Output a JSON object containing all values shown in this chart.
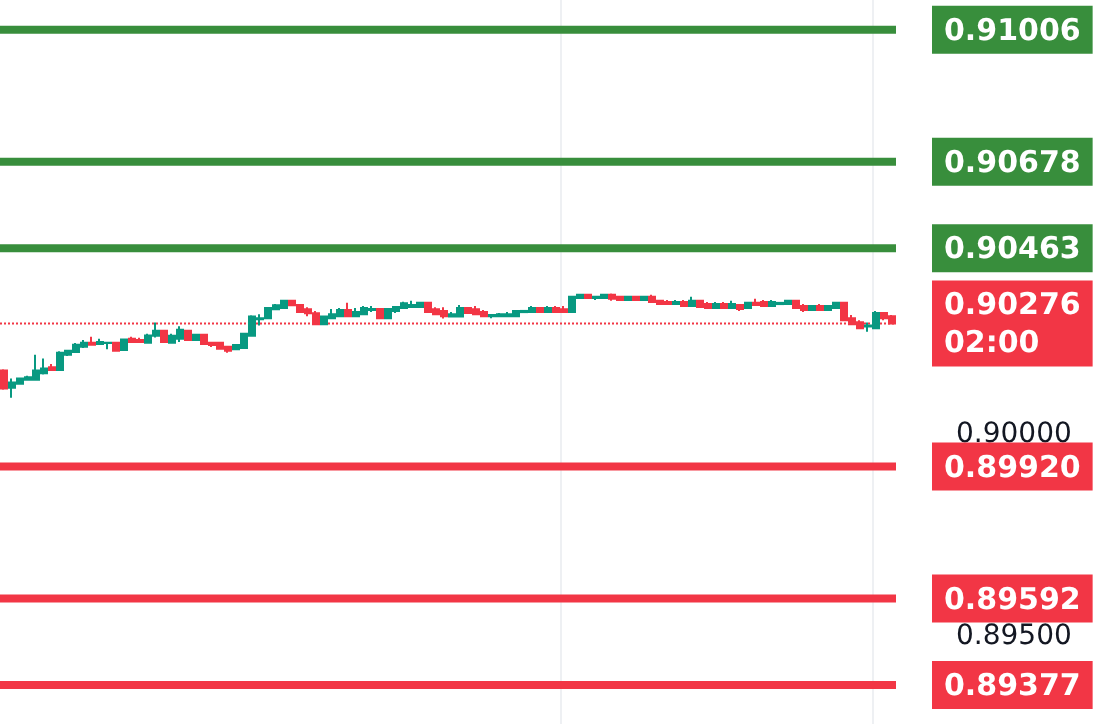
{
  "chart_data": {
    "type": "candlestick",
    "categories": [
      null,
      null,
      null,
      null,
      null,
      null,
      null,
      null,
      null,
      null,
      null,
      null,
      null,
      null,
      null,
      null,
      null,
      null,
      null,
      null,
      null,
      null,
      null,
      null,
      null,
      null,
      null,
      null,
      null,
      null,
      null,
      null,
      null,
      null,
      null,
      null,
      null,
      null,
      null,
      null,
      null,
      null,
      null,
      null,
      null,
      null,
      null,
      null,
      null,
      null,
      null,
      null,
      null,
      null,
      null,
      null,
      null,
      null,
      null,
      null,
      null,
      null,
      null,
      null,
      null,
      null,
      null,
      null,
      null,
      null,
      null,
      null,
      null,
      null,
      null,
      null,
      null,
      null,
      null,
      null,
      null,
      null,
      null,
      null,
      null,
      null,
      null,
      null,
      null,
      null,
      null,
      null,
      null,
      null,
      null,
      null,
      null,
      null,
      null,
      null,
      null,
      null,
      null,
      null,
      null,
      null,
      null,
      null,
      null,
      null,
      null,
      null
    ],
    "ohlc": [
      [
        0.90159,
        0.90162,
        0.90111,
        0.90114
      ],
      [
        0.90116,
        0.90139,
        0.90091,
        0.90129
      ],
      [
        0.90126,
        0.90139,
        0.90126,
        0.90139
      ],
      [
        0.90136,
        0.90146,
        0.90136,
        0.90142
      ],
      [
        0.90136,
        0.90198,
        0.90136,
        0.90159
      ],
      [
        0.90152,
        0.90189,
        0.90149,
        0.90164
      ],
      [
        0.90167,
        0.90175,
        0.9016,
        0.9016
      ],
      [
        0.9016,
        0.90207,
        0.9016,
        0.90203
      ],
      [
        0.90198,
        0.90208,
        0.90195,
        0.90208
      ],
      [
        0.90205,
        0.90227,
        0.90205,
        0.90223
      ],
      [
        0.90218,
        0.90235,
        0.90215,
        0.90228
      ],
      [
        0.90228,
        0.90243,
        0.90223,
        0.90223
      ],
      [
        0.90225,
        0.90238,
        0.90225,
        0.9023
      ],
      [
        0.90227,
        0.9023,
        0.90212,
        0.90228
      ],
      [
        0.90228,
        0.90228,
        0.90208,
        0.90208
      ],
      [
        0.9021,
        0.90238,
        0.9021,
        0.90236
      ],
      [
        0.90238,
        0.90243,
        0.9023,
        0.9023
      ],
      [
        0.90235,
        0.9024,
        0.9023,
        0.9023
      ],
      [
        0.90228,
        0.9025,
        0.90228,
        0.90246
      ],
      [
        0.90245,
        0.90278,
        0.90241,
        0.90258
      ],
      [
        0.90258,
        0.90258,
        0.9023,
        0.9023
      ],
      [
        0.90228,
        0.9025,
        0.90228,
        0.90245
      ],
      [
        0.90238,
        0.90269,
        0.9023,
        0.9026
      ],
      [
        0.90258,
        0.90258,
        0.90235,
        0.90235
      ],
      [
        0.90235,
        0.90248,
        0.90235,
        0.90248
      ],
      [
        0.90248,
        0.90248,
        0.90225,
        0.90225
      ],
      [
        0.90228,
        0.90228,
        0.90217,
        0.90222
      ],
      [
        0.90228,
        0.90228,
        0.90213,
        0.90213
      ],
      [
        0.90218,
        0.90218,
        0.90203,
        0.90208
      ],
      [
        0.90212,
        0.90225,
        0.90212,
        0.90222
      ],
      [
        0.90215,
        0.90253,
        0.90215,
        0.9025
      ],
      [
        0.90245,
        0.90296,
        0.90245,
        0.90293
      ],
      [
        0.90286,
        0.90299,
        0.90271,
        0.90289
      ],
      [
        0.90289,
        0.90317,
        0.90289,
        0.90314
      ],
      [
        0.90311,
        0.90324,
        0.90311,
        0.90321
      ],
      [
        0.90314,
        0.90332,
        0.90314,
        0.90332
      ],
      [
        0.90332,
        0.90332,
        0.90321,
        0.90321
      ],
      [
        0.90322,
        0.90322,
        0.90304,
        0.90304
      ],
      [
        0.90311,
        0.90316,
        0.90294,
        0.90301
      ],
      [
        0.90301,
        0.90307,
        0.90274,
        0.90274
      ],
      [
        0.90274,
        0.90293,
        0.90274,
        0.90293
      ],
      [
        0.90289,
        0.90312,
        0.90289,
        0.90299
      ],
      [
        0.90294,
        0.90314,
        0.90294,
        0.90309
      ],
      [
        0.90309,
        0.90327,
        0.90294,
        0.90294
      ],
      [
        0.90294,
        0.90314,
        0.90294,
        0.90304
      ],
      [
        0.90299,
        0.90319,
        0.90299,
        0.90314
      ],
      [
        0.90309,
        0.90319,
        0.90304,
        0.90312
      ],
      [
        0.90312,
        0.90312,
        0.90289,
        0.90289
      ],
      [
        0.90289,
        0.90312,
        0.90289,
        0.90312
      ],
      [
        0.90307,
        0.90317,
        0.90302,
        0.90317
      ],
      [
        0.90314,
        0.9033,
        0.90314,
        0.90326
      ],
      [
        0.90317,
        0.90332,
        0.90317,
        0.90322
      ],
      [
        0.90317,
        0.90327,
        0.90317,
        0.90327
      ],
      [
        0.90327,
        0.90327,
        0.90304,
        0.90304
      ],
      [
        0.90311,
        0.90316,
        0.90299,
        0.90299
      ],
      [
        0.90307,
        0.90316,
        0.90288,
        0.90294
      ],
      [
        0.90293,
        0.90304,
        0.90293,
        0.90299
      ],
      [
        0.90293,
        0.90322,
        0.90293,
        0.90314
      ],
      [
        0.90314,
        0.90314,
        0.90302,
        0.90302
      ],
      [
        0.90311,
        0.90319,
        0.90299,
        0.90299
      ],
      [
        0.90304,
        0.90309,
        0.90294,
        0.90294
      ],
      [
        0.90294,
        0.90297,
        0.90289,
        0.90297
      ],
      [
        0.90294,
        0.90302,
        0.90294,
        0.90299
      ],
      [
        0.90294,
        0.90304,
        0.90294,
        0.90299
      ],
      [
        0.90294,
        0.90307,
        0.90294,
        0.90307
      ],
      [
        0.90304,
        0.90307,
        0.90304,
        0.90307
      ],
      [
        0.90304,
        0.90319,
        0.90304,
        0.90314
      ],
      [
        0.90314,
        0.90314,
        0.90304,
        0.90304
      ],
      [
        0.90304,
        0.90319,
        0.90304,
        0.90314
      ],
      [
        0.90314,
        0.90319,
        0.90304,
        0.90304
      ],
      [
        0.90311,
        0.90319,
        0.90304,
        0.90304
      ],
      [
        0.90304,
        0.90342,
        0.90304,
        0.90342
      ],
      [
        0.90339,
        0.90347,
        0.90339,
        0.90347
      ],
      [
        0.90347,
        0.90347,
        0.90339,
        0.90339
      ],
      [
        0.90339,
        0.90342,
        0.90334,
        0.90342
      ],
      [
        0.90339,
        0.90347,
        0.90339,
        0.90347
      ],
      [
        0.90347,
        0.9035,
        0.90332,
        0.90337
      ],
      [
        0.90342,
        0.90342,
        0.90334,
        0.90334
      ],
      [
        0.90334,
        0.90342,
        0.90334,
        0.90342
      ],
      [
        0.90342,
        0.90342,
        0.90334,
        0.90334
      ],
      [
        0.90334,
        0.90342,
        0.90334,
        0.90342
      ],
      [
        0.90342,
        0.90347,
        0.90329,
        0.90329
      ],
      [
        0.90332,
        0.90332,
        0.90324,
        0.90324
      ],
      [
        0.90329,
        0.90334,
        0.90324,
        0.90324
      ],
      [
        0.90324,
        0.90334,
        0.90324,
        0.90329
      ],
      [
        0.90329,
        0.90334,
        0.90319,
        0.90319
      ],
      [
        0.90319,
        0.90342,
        0.90319,
        0.90332
      ],
      [
        0.90332,
        0.90332,
        0.90317,
        0.90317
      ],
      [
        0.90324,
        0.90329,
        0.90314,
        0.90314
      ],
      [
        0.90314,
        0.90329,
        0.90314,
        0.90324
      ],
      [
        0.90324,
        0.90329,
        0.90314,
        0.90314
      ],
      [
        0.90314,
        0.90332,
        0.90314,
        0.90324
      ],
      [
        0.90322,
        0.90322,
        0.90307,
        0.90312
      ],
      [
        0.90314,
        0.90327,
        0.90314,
        0.90327
      ],
      [
        0.90327,
        0.90337,
        0.90322,
        0.90322
      ],
      [
        0.90329,
        0.90334,
        0.90319,
        0.90319
      ],
      [
        0.90319,
        0.90334,
        0.90319,
        0.90329
      ],
      [
        0.90324,
        0.90327,
        0.90324,
        0.90327
      ],
      [
        0.90324,
        0.90332,
        0.90324,
        0.90332
      ],
      [
        0.90332,
        0.90332,
        0.90314,
        0.90314
      ],
      [
        0.90319,
        0.90324,
        0.90304,
        0.90309
      ],
      [
        0.90309,
        0.90319,
        0.90309,
        0.90319
      ],
      [
        0.90319,
        0.90324,
        0.90309,
        0.90309
      ],
      [
        0.90309,
        0.90319,
        0.90309,
        0.90319
      ],
      [
        0.90314,
        0.90327,
        0.90314,
        0.90327
      ],
      [
        0.90327,
        0.90327,
        0.90284,
        0.90284
      ],
      [
        0.90289,
        0.90297,
        0.90274,
        0.90274
      ],
      [
        0.90279,
        0.90284,
        0.90264,
        0.90264
      ],
      [
        0.90268,
        0.90278,
        0.90255,
        0.90271
      ],
      [
        0.90264,
        0.90307,
        0.90264,
        0.90302
      ],
      [
        0.90302,
        0.90302,
        0.90284,
        0.90289
      ],
      [
        0.90294,
        0.90297,
        0.90274,
        0.90276
      ]
    ],
    "ylim": [
      0.8928,
      0.9108
    ],
    "yticks": [
      {
        "value": 0.895,
        "label": "0.89500"
      },
      {
        "value": 0.9,
        "label": "0.90000"
      }
    ],
    "tick_labels": "y",
    "grid": "x",
    "ref_lines": [
      {
        "axis": "y",
        "value": 0.91006,
        "label": "0.91006",
        "color": "#388e3c"
      },
      {
        "axis": "y",
        "value": 0.90678,
        "label": "0.90678",
        "color": "#388e3c"
      },
      {
        "axis": "y",
        "value": 0.90463,
        "label": "0.90463",
        "color": "#388e3c"
      },
      {
        "axis": "y",
        "value": 0.90276,
        "label": "0.90276",
        "color": "#f23645",
        "line_style": "dotted"
      },
      {
        "axis": "y",
        "value": 0.8992,
        "label": "0.89920",
        "color": "#f23645"
      },
      {
        "axis": "y",
        "value": 0.89592,
        "label": "0.89592",
        "color": "#f23645"
      },
      {
        "axis": "y",
        "value": 0.89377,
        "label": "0.89377",
        "color": "#f23645"
      }
    ],
    "annotations": [
      "02:00"
    ]
  }
}
